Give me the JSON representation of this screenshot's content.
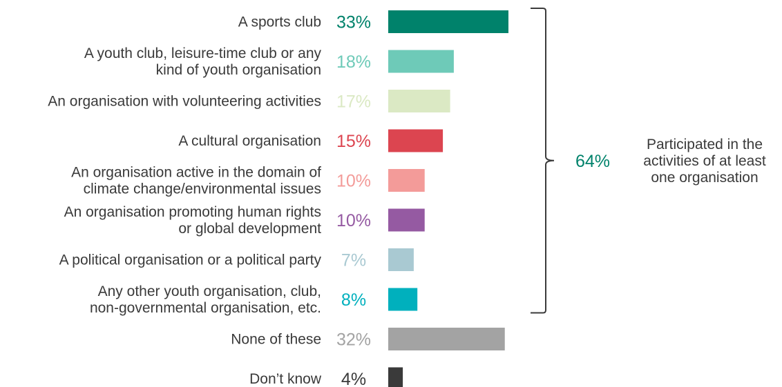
{
  "chart_data": {
    "type": "bar",
    "orientation": "horizontal",
    "categories": [
      [
        "A sports club"
      ],
      [
        "A youth club, leisure-time club or any",
        "kind of youth organisation"
      ],
      [
        "An organisation with volunteering activities"
      ],
      [
        "A cultural organisation"
      ],
      [
        "An organisation active in the domain of",
        "climate change/environmental issues"
      ],
      [
        "An organisation promoting human rights",
        "or global development"
      ],
      [
        "A political organisation or a political party"
      ],
      [
        "Any other youth organisation, club,",
        "non-governmental organisation, etc."
      ],
      [
        "None of these"
      ],
      [
        "Don’t know"
      ]
    ],
    "values": [
      33,
      18,
      17,
      15,
      10,
      10,
      7,
      8,
      32,
      4
    ],
    "value_labels": [
      "33%",
      "18%",
      "17%",
      "15%",
      "10%",
      "10%",
      "7%",
      "8%",
      "32%",
      "4%"
    ],
    "colors": [
      "#00826b",
      "#6ecab8",
      "#dbe9c4",
      "#dc4550",
      "#f39b99",
      "#955aa2",
      "#a9c9d2",
      "#00b0bd",
      "#a3a3a3",
      "#3a3a3a"
    ],
    "xlim": [
      0,
      33
    ],
    "grid": false,
    "bracket": {
      "value_label": "64%",
      "value_color": "#00826b",
      "text_lines": [
        "Participated in the",
        "activities of at least",
        "one organisation"
      ],
      "covers_first_n": 8
    }
  }
}
